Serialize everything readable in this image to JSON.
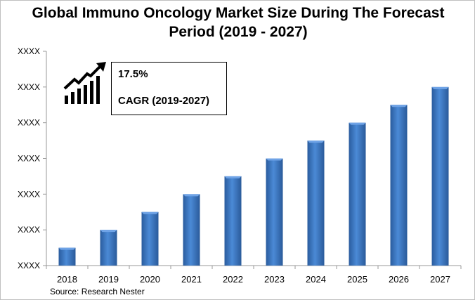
{
  "chart_data": {
    "type": "bar",
    "title": [
      "Global Immuno Oncology Market Size During The Forecast",
      "Period (2019 - 2027)"
    ],
    "categories": [
      "2018",
      "2019",
      "2020",
      "2021",
      "2022",
      "2023",
      "2024",
      "2025",
      "2026",
      "2027"
    ],
    "values": [
      0.5,
      1,
      1.5,
      2,
      2.5,
      3,
      3.5,
      4,
      4.5,
      5
    ],
    "ylim": [
      0,
      6
    ],
    "yticks": [
      0,
      1,
      2,
      3,
      4,
      5,
      6
    ],
    "ytick_labels": [
      "XXXX",
      "XXXX",
      "XXXX",
      "XXXX",
      "XXXX",
      "XXXX",
      "XXXX"
    ],
    "xlabel": "",
    "ylabel": "",
    "grid": false,
    "bar_color": "#3c78c8",
    "annotation": {
      "value": "17.5%",
      "label": "CAGR (2019-2027)",
      "icon": "growth-chart-icon"
    },
    "source": "Source: Research Nester"
  }
}
